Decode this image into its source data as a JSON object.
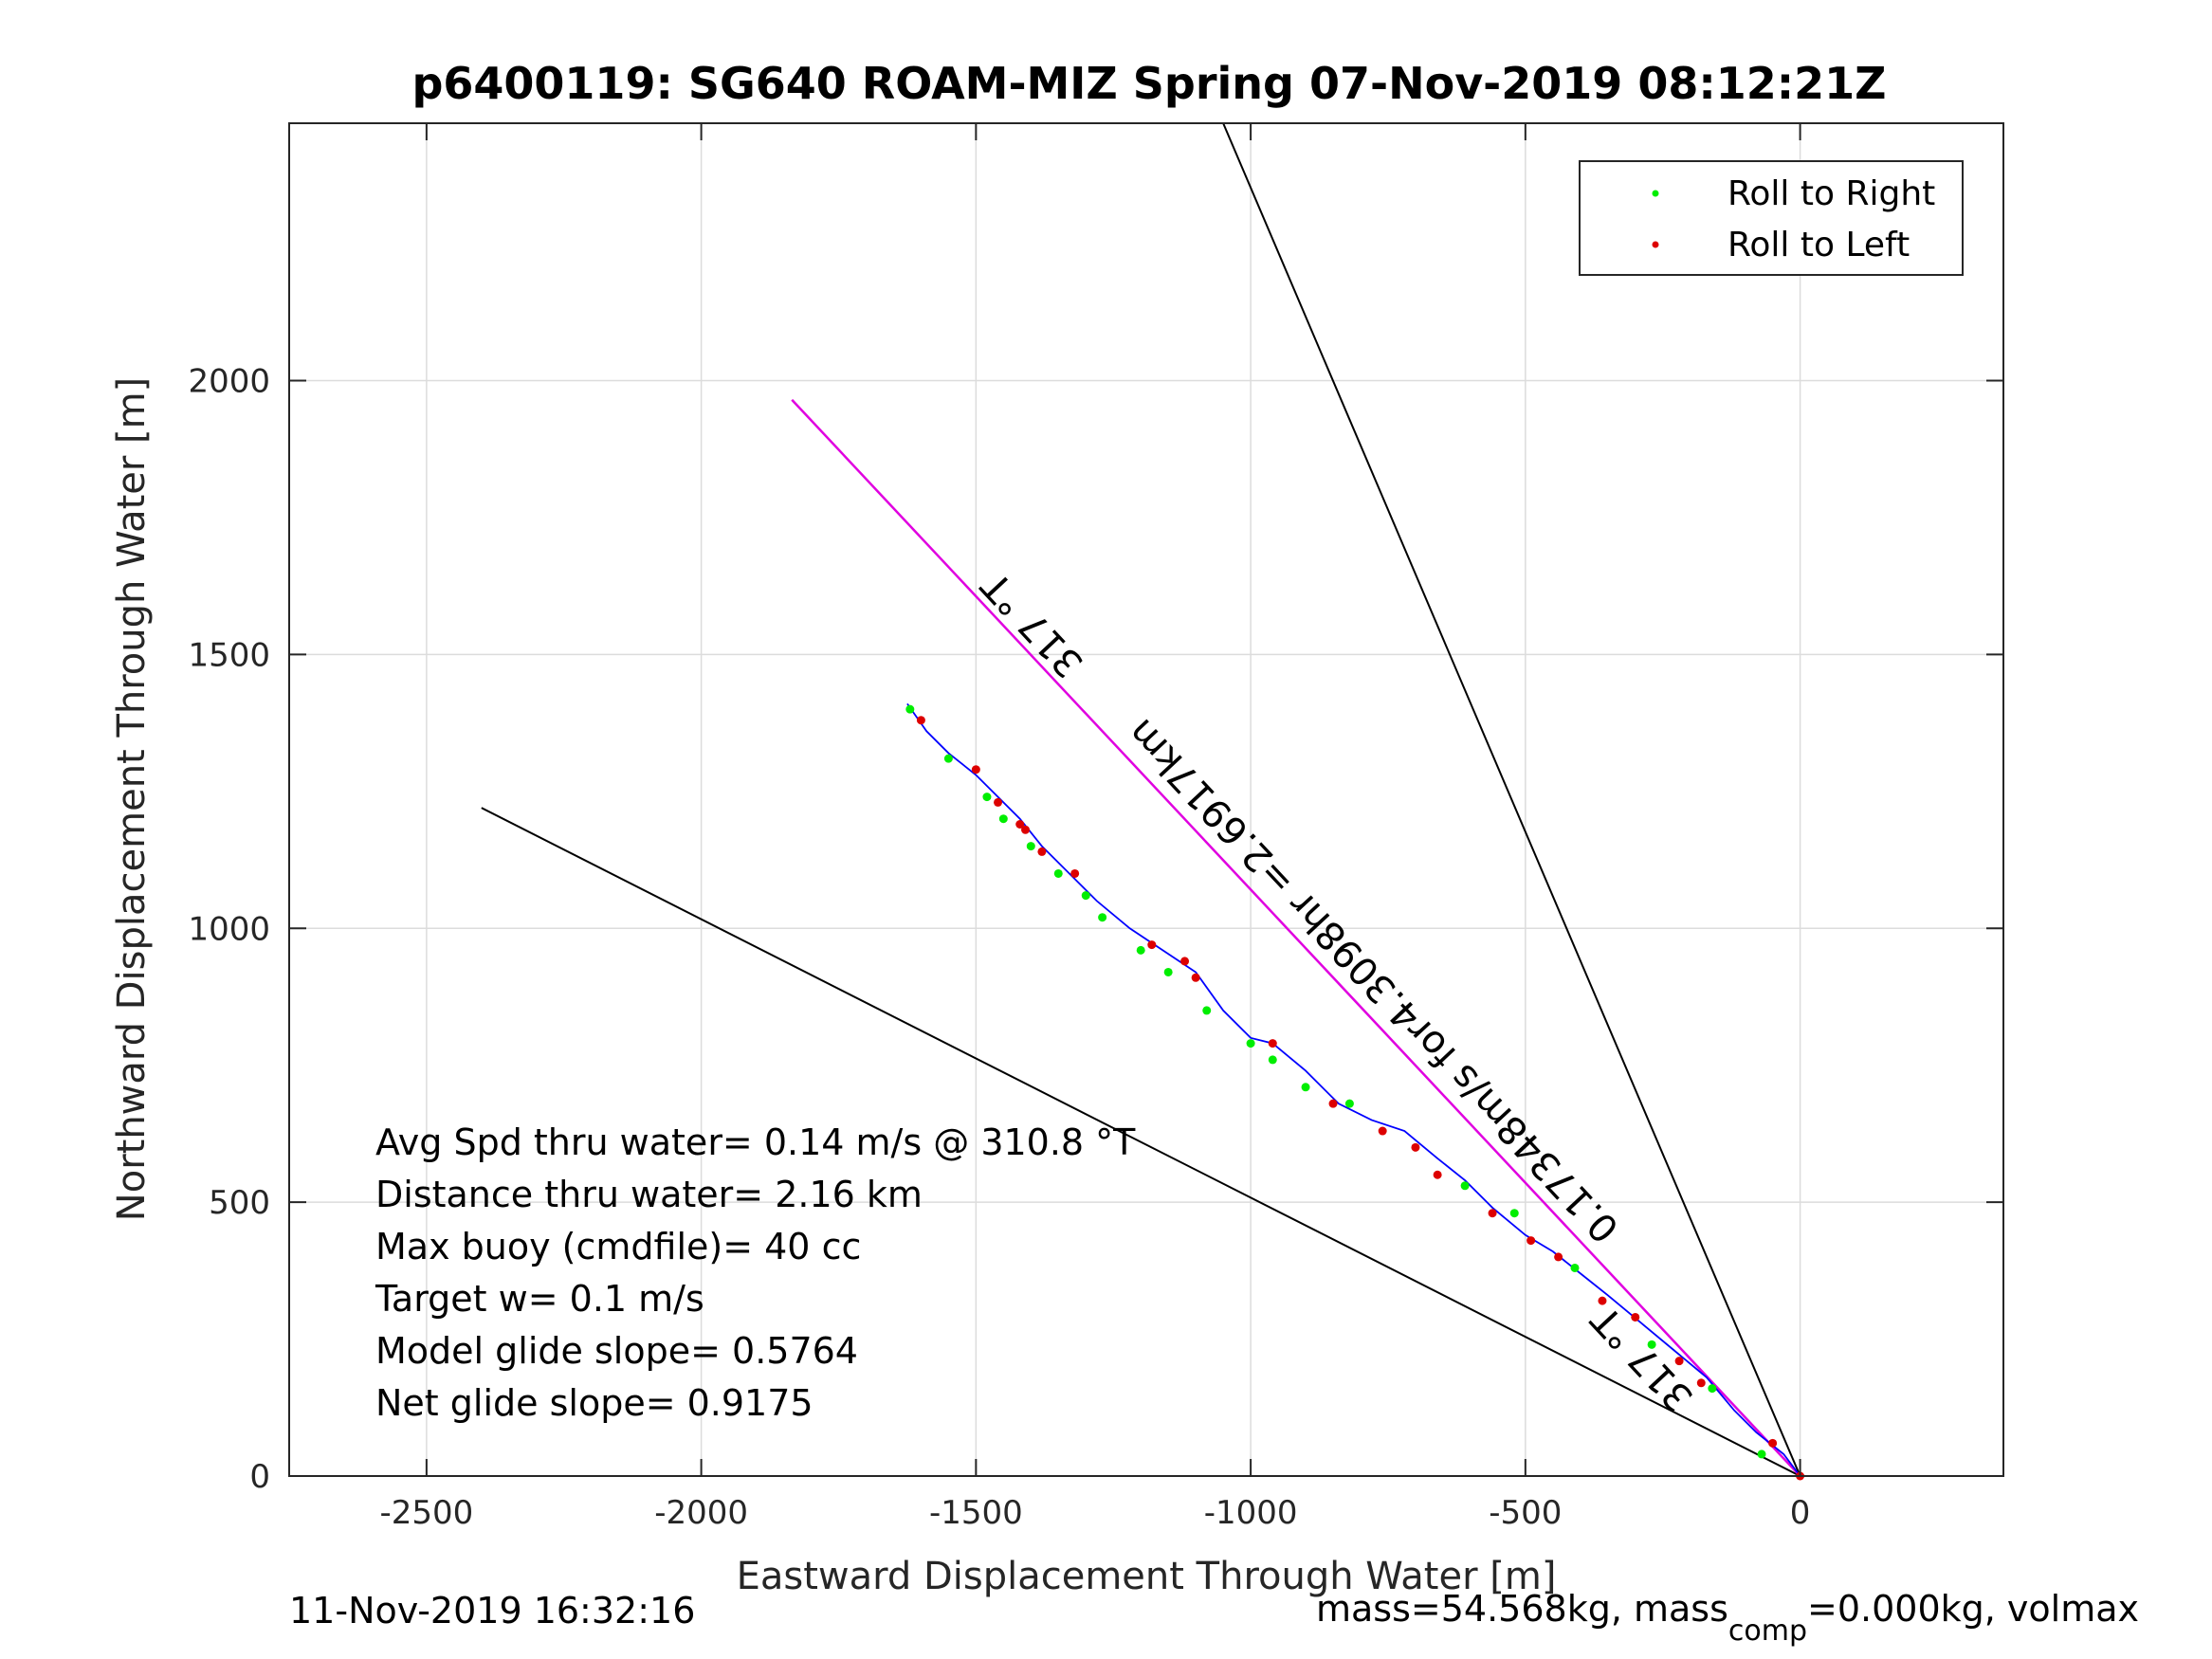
{
  "chart_data": {
    "type": "scatter",
    "title": "p6400119: SG640 ROAM-MIZ Spring 07-Nov-2019 08:12:21Z",
    "xlabel": "Eastward Displacement Through Water [m]",
    "ylabel": "Northward Displacement Through Water [m]",
    "xlim": [
      -2750,
      370
    ],
    "ylim": [
      0,
      2470
    ],
    "xticks": [
      -2500,
      -2000,
      -1500,
      -1000,
      -500,
      0
    ],
    "yticks": [
      0,
      500,
      1000,
      1500,
      2000
    ],
    "grid": true,
    "legend": {
      "position": "top-right",
      "entries": [
        {
          "name": "Roll to Right",
          "color": "#00ee00"
        },
        {
          "name": "Roll to Left",
          "color": "#dd0000"
        }
      ]
    },
    "lines": [
      {
        "role": "envelope",
        "color": "#000000",
        "x": [
          0,
          -1050
        ],
        "y": [
          0,
          2470
        ]
      },
      {
        "role": "envelope",
        "color": "#000000",
        "x": [
          0,
          -2400
        ],
        "y": [
          0,
          1220
        ]
      },
      {
        "role": "target-heading",
        "color": "#e000e0",
        "x": [
          0,
          -1835
        ],
        "y": [
          0,
          1965
        ]
      }
    ],
    "track": {
      "color": "#0000ff",
      "x": [
        0,
        -30,
        -80,
        -120,
        -170,
        -230,
        -290,
        -350,
        -400,
        -450,
        -500,
        -560,
        -610,
        -660,
        -720,
        -780,
        -840,
        -900,
        -960,
        -1000,
        -1050,
        -1100,
        -1160,
        -1220,
        -1280,
        -1330,
        -1380,
        -1420,
        -1460,
        -1500,
        -1550,
        -1590,
        -1625
      ],
      "y": [
        0,
        40,
        80,
        120,
        180,
        230,
        280,
        330,
        370,
        410,
        440,
        490,
        540,
        580,
        630,
        650,
        680,
        740,
        790,
        800,
        850,
        920,
        960,
        1000,
        1050,
        1100,
        1150,
        1200,
        1240,
        1280,
        1320,
        1360,
        1410
      ]
    },
    "roll_right": {
      "x": [
        -70,
        -160,
        -270,
        -410,
        -520,
        -610,
        -820,
        -900,
        -960,
        -1000,
        -1080,
        -1150,
        -1200,
        -1270,
        -1300,
        -1350,
        -1400,
        -1450,
        -1480,
        -1550,
        -1620
      ],
      "y": [
        40,
        160,
        240,
        380,
        480,
        530,
        680,
        710,
        760,
        790,
        850,
        920,
        960,
        1020,
        1060,
        1100,
        1150,
        1200,
        1240,
        1310,
        1400
      ]
    },
    "roll_left": {
      "x": [
        -50,
        -180,
        -220,
        -300,
        -360,
        -440,
        -490,
        -560,
        -660,
        -700,
        -760,
        -850,
        -960,
        -1100,
        -1120,
        -1180,
        -1320,
        -1380,
        -1410,
        -1420,
        -1460,
        -1500,
        -1600
      ],
      "y": [
        60,
        170,
        210,
        290,
        320,
        400,
        430,
        480,
        550,
        600,
        630,
        680,
        790,
        910,
        940,
        970,
        1100,
        1140,
        1180,
        1190,
        1230,
        1290,
        1380
      ]
    },
    "annotations": [
      {
        "text": "317 °T",
        "x": -1380,
        "y": 1570,
        "rotation": 227
      },
      {
        "text": "317 °T",
        "x": -270,
        "y": 230,
        "rotation": 227
      },
      {
        "text": "0.17348m/s for4.3098hr =2.6917km",
        "x": -760,
        "y": 920,
        "rotation": 227
      }
    ]
  },
  "stats": [
    "Avg Spd thru water=  0.14 m/s @ 310.8 °T",
    "Distance thru water=  2.16 km",
    "Max buoy (cmdfile)= 40 cc",
    "Target w= 0.1 m/s",
    "Model glide slope= 0.5764",
    "Net glide slope= 0.9175"
  ],
  "footer": {
    "timestamp": "11-Nov-2019 16:32:16",
    "mass_prefix": "mass=54.568kg, mass",
    "mass_sub": "comp",
    "mass_suffix": "=0.000kg, volmax"
  }
}
